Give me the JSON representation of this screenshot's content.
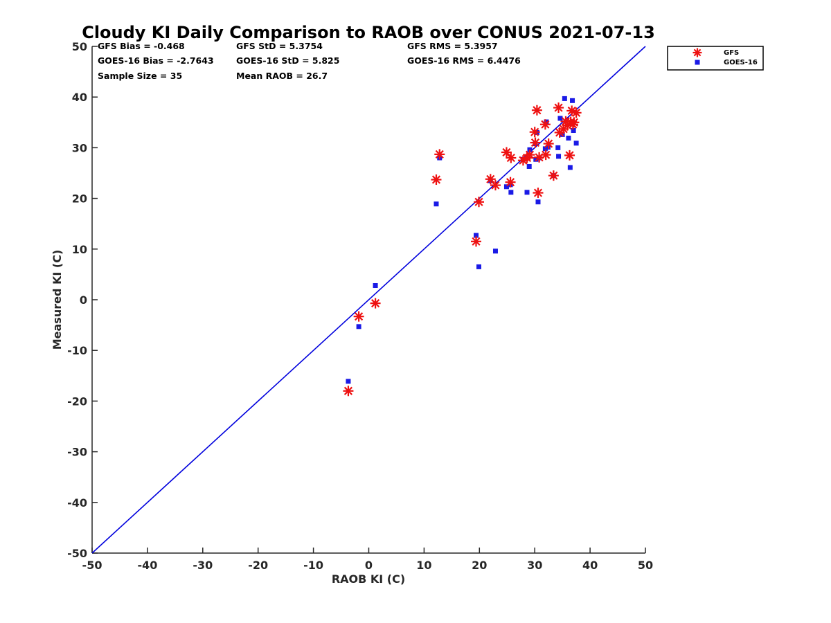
{
  "chart_data": {
    "type": "scatter",
    "title": "Cloudy KI Daily Comparison to RAOB over CONUS 2021-07-13",
    "xlabel": "RAOB KI (C)",
    "ylabel": "Measured KI (C)",
    "xlim": [
      -50,
      50
    ],
    "ylim": [
      -50,
      50
    ],
    "xticks": [
      "-50",
      "-40",
      "-30",
      "-20",
      "-10",
      "0",
      "10",
      "20",
      "30",
      "40",
      "50"
    ],
    "yticks": [
      "-50",
      "-40",
      "-30",
      "-20",
      "-10",
      "0",
      "10",
      "20",
      "30",
      "40",
      "50"
    ],
    "grid": false,
    "legend_position": "top-right outside",
    "reference_line": {
      "from": [
        -50,
        -50
      ],
      "to": [
        50,
        50
      ],
      "color": "#0000dd"
    },
    "stats": [
      [
        "GFS Bias = -0.468",
        "GFS StD = 5.3754",
        "GFS RMS = 5.3957"
      ],
      [
        "GOES-16 Bias = -2.7643",
        "GOES-16 StD = 5.825",
        "GOES-16 RMS = 6.4476"
      ],
      [
        "Sample Size = 35",
        "Mean RAOB = 26.7"
      ]
    ],
    "series": [
      {
        "name": "GFS",
        "marker": "asterisk",
        "color": "#ee1111",
        "points": [
          [
            -3.7,
            -18.0
          ],
          [
            -1.8,
            -3.3
          ],
          [
            1.2,
            -0.7
          ],
          [
            12.2,
            23.7
          ],
          [
            12.8,
            28.7
          ],
          [
            19.4,
            11.5
          ],
          [
            19.9,
            19.3
          ],
          [
            22.0,
            23.8
          ],
          [
            22.9,
            22.6
          ],
          [
            24.9,
            29.1
          ],
          [
            25.6,
            23.2
          ],
          [
            25.7,
            28.0
          ],
          [
            27.9,
            27.5
          ],
          [
            28.6,
            28.0
          ],
          [
            29.1,
            28.6
          ],
          [
            30.0,
            33.1
          ],
          [
            30.1,
            31.0
          ],
          [
            30.4,
            37.4
          ],
          [
            30.6,
            21.1
          ],
          [
            30.8,
            28.1
          ],
          [
            31.9,
            34.6
          ],
          [
            32.0,
            28.6
          ],
          [
            32.5,
            30.8
          ],
          [
            33.4,
            24.5
          ],
          [
            34.3,
            37.9
          ],
          [
            34.5,
            33.0
          ],
          [
            35.2,
            33.7
          ],
          [
            35.6,
            35.2
          ],
          [
            35.9,
            34.4
          ],
          [
            36.3,
            28.5
          ],
          [
            36.5,
            35.1
          ],
          [
            36.7,
            37.3
          ],
          [
            36.9,
            34.6
          ],
          [
            37.1,
            35.0
          ],
          [
            37.5,
            36.9
          ]
        ]
      },
      {
        "name": "GOES-16",
        "marker": "square",
        "color": "#1a1ae6",
        "points": [
          [
            -3.7,
            -16.1
          ],
          [
            -1.8,
            -5.3
          ],
          [
            1.2,
            2.8
          ],
          [
            12.2,
            18.9
          ],
          [
            12.8,
            28.0
          ],
          [
            19.4,
            12.7
          ],
          [
            19.9,
            6.5
          ],
          [
            22.0,
            23.5
          ],
          [
            22.9,
            9.6
          ],
          [
            24.9,
            22.3
          ],
          [
            25.6,
            22.7
          ],
          [
            25.7,
            21.2
          ],
          [
            27.9,
            27.7
          ],
          [
            28.6,
            21.2
          ],
          [
            29.0,
            26.3
          ],
          [
            29.1,
            29.6
          ],
          [
            30.1,
            30.8
          ],
          [
            30.2,
            27.7
          ],
          [
            30.4,
            33.0
          ],
          [
            30.6,
            19.3
          ],
          [
            30.8,
            28.0
          ],
          [
            31.9,
            29.8
          ],
          [
            32.1,
            35.1
          ],
          [
            32.4,
            30.1
          ],
          [
            33.4,
            24.5
          ],
          [
            34.2,
            30.0
          ],
          [
            34.3,
            28.3
          ],
          [
            34.6,
            35.8
          ],
          [
            35.0,
            32.6
          ],
          [
            35.4,
            39.7
          ],
          [
            36.1,
            31.9
          ],
          [
            36.4,
            26.1
          ],
          [
            36.8,
            39.3
          ],
          [
            37.0,
            33.4
          ],
          [
            37.5,
            30.9
          ]
        ]
      }
    ]
  }
}
